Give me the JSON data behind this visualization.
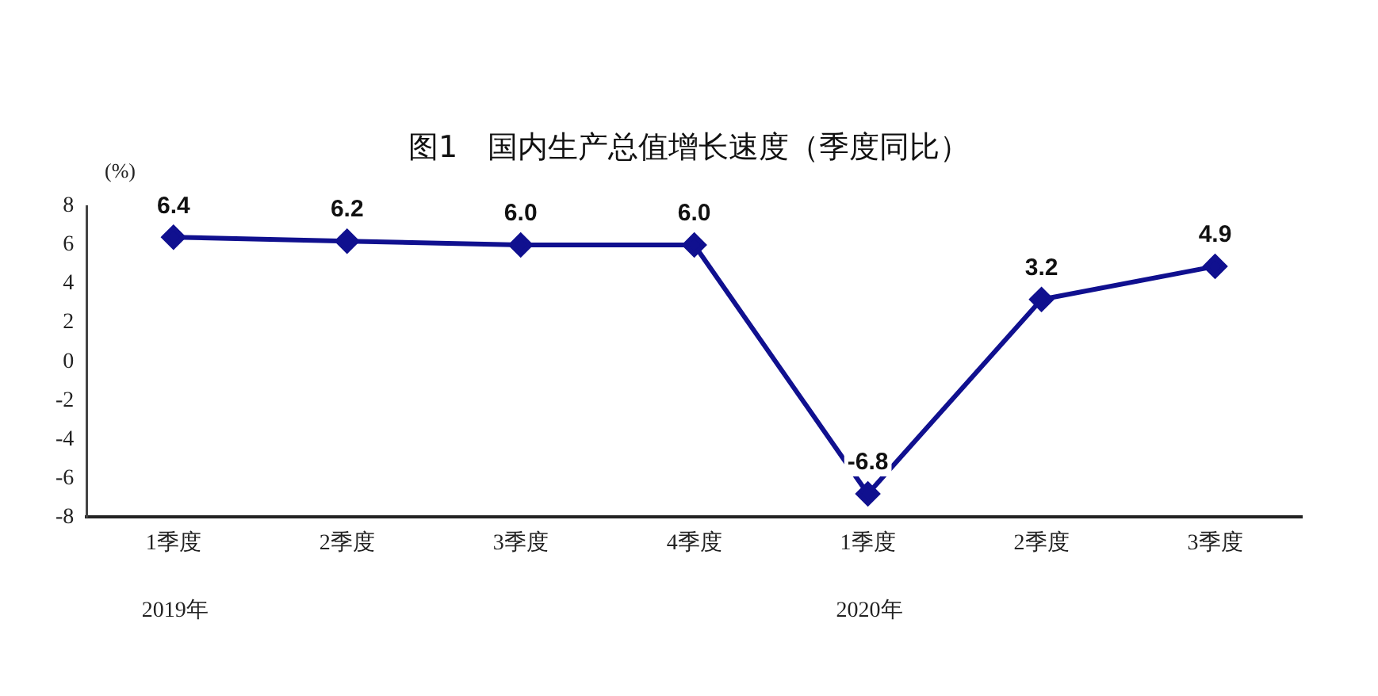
{
  "chart_data": {
    "type": "line",
    "title": "图1　国内生产总值增长速度（季度同比）",
    "ylabel": "(%)",
    "categories": [
      "1季度",
      "2季度",
      "3季度",
      "4季度",
      "1季度",
      "2季度",
      "3季度"
    ],
    "series": [
      {
        "color": "#10108f",
        "values": [
          6.4,
          6.2,
          6.0,
          6.0,
          -6.8,
          3.2,
          4.9
        ],
        "value_labels": [
          "6.4",
          "6.2",
          "6.0",
          "6.0",
          "-6.8",
          "3.2",
          "4.9"
        ]
      }
    ],
    "ylim": [
      -8,
      8
    ],
    "yticks": [
      -8,
      -6,
      -4,
      -2,
      0,
      2,
      4,
      6,
      8
    ],
    "grid": false,
    "legend": false,
    "marker": "diamond",
    "line_style": "solid",
    "annotations": [
      "2019年",
      "2020年"
    ]
  }
}
